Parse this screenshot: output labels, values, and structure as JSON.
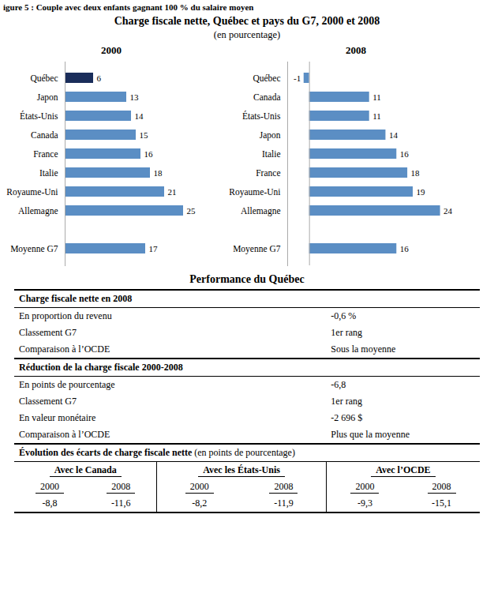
{
  "title": "Charge fiscale nette, Québec et pays du G7, 2000 et 2008",
  "subtitle": "(en pourcentage)",
  "annotations": [
    "igure 5 : Couple avec deux enfants gagnant 100 % du salaire moyen"
  ],
  "chart_data": [
    {
      "type": "bar",
      "title": "2000",
      "orientation": "horizontal",
      "categories": [
        "Québec",
        "Japon",
        "États-Unis",
        "Canada",
        "France",
        "Italie",
        "Royaume-Uni",
        "Allemagne",
        null,
        "Moyenne G7"
      ],
      "values": [
        6,
        13,
        14,
        15,
        16,
        18,
        21,
        25,
        null,
        17
      ],
      "colors": [
        "#1a2d5a",
        "#5b8ec4",
        "#5b8ec4",
        "#5b8ec4",
        "#5b8ec4",
        "#5b8ec4",
        "#5b8ec4",
        "#5b8ec4",
        null,
        "#5b8ec4"
      ],
      "xlim": [
        0,
        31
      ],
      "data_labels": true,
      "tick_labels": "y",
      "grid": false
    },
    {
      "type": "bar",
      "title": "2008",
      "orientation": "horizontal",
      "categories": [
        "Québec",
        "Canada",
        "États-Unis",
        "Japon",
        "Italie",
        "France",
        "Royaume-Uni",
        "Allemagne",
        null,
        "Moyenne G7"
      ],
      "values": [
        -1,
        11,
        11,
        14,
        16,
        18,
        19,
        24,
        null,
        16
      ],
      "colors": [
        "#5b8ec4",
        "#5b8ec4",
        "#5b8ec4",
        "#5b8ec4",
        "#5b8ec4",
        "#5b8ec4",
        "#5b8ec4",
        "#5b8ec4",
        null,
        "#5b8ec4"
      ],
      "xlim": [
        -4,
        31
      ],
      "data_labels": true,
      "tick_labels": "y",
      "grid": false
    }
  ],
  "table": {
    "title": "Performance du Québec",
    "sections": [
      {
        "header": "Charge fiscale nette en 2008",
        "rows": [
          [
            "En proportion du revenu",
            "-0,6 %"
          ],
          [
            "Classement G7",
            "1er rang"
          ],
          [
            "Comparaison à l’OCDE",
            "Sous la moyenne"
          ]
        ]
      },
      {
        "header": "Réduction de la charge fiscale 2000-2008",
        "rows": [
          [
            "En points de pourcentage",
            "-6,8"
          ],
          [
            "Classement G7",
            "1er rang"
          ],
          [
            "En valeur monétaire",
            "-2 696 $"
          ],
          [
            "Comparaison à l’OCDE",
            "Plus que la moyenne"
          ]
        ]
      }
    ],
    "comparison": {
      "header": "Évolution des écarts de charge fiscale nette",
      "header_note": " (en points de pourcentage)",
      "columns": [
        "Avec le Canada",
        "Avec les États-Unis",
        "Avec l’OCDE"
      ],
      "years": [
        "2000",
        "2008"
      ],
      "values": [
        "-8,8",
        "-11,6",
        "-8,2",
        "-11,9",
        "-9,3",
        "-15,1"
      ]
    }
  }
}
